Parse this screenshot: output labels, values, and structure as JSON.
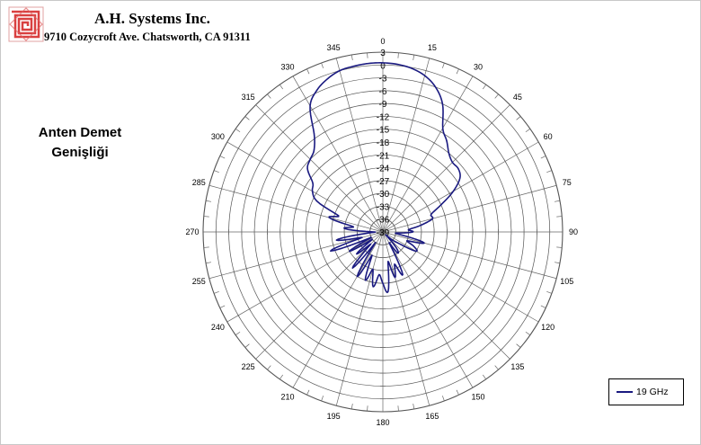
{
  "header": {
    "company_name": "A.H. Systems Inc.",
    "company_address": "9710 Cozycroft Ave. Chatsworth, CA 91311"
  },
  "side_title": {
    "line1": "Anten Demet",
    "line2": "Genişliği"
  },
  "legend": {
    "label": "19 GHz",
    "color": "#1a1a80"
  },
  "chart_data": {
    "type": "polar-line",
    "angle_unit": "degrees",
    "angle_direction": "clockwise",
    "zero_position": "top",
    "angle_tick_labels": [
      "0",
      "15",
      "30",
      "45",
      "60",
      "75",
      "90",
      "105",
      "120",
      "135",
      "150",
      "165",
      "180",
      "195",
      "210",
      "225",
      "240",
      "255",
      "270",
      "285",
      "300",
      "315",
      "330",
      "345"
    ],
    "radial_range": [
      -39,
      3
    ],
    "radial_tick_labels": [
      "3",
      "0",
      "-3",
      "-6",
      "-9",
      "-12",
      "-15",
      "-18",
      "-21",
      "-24",
      "-27",
      "-30",
      "-33",
      "-36",
      "-39"
    ],
    "grid": true,
    "legend_position": "bottom-right",
    "series": [
      {
        "name": "19 GHz",
        "color": "#1a1a80",
        "angles": [
          0,
          5,
          10,
          15,
          20,
          25,
          30,
          35,
          40,
          45,
          50,
          55,
          60,
          65,
          70,
          75,
          80,
          85,
          90,
          95,
          100,
          105,
          110,
          115,
          120,
          125,
          130,
          135,
          140,
          145,
          150,
          155,
          160,
          165,
          170,
          175,
          180,
          185,
          190,
          195,
          200,
          205,
          210,
          215,
          220,
          225,
          230,
          235,
          240,
          245,
          250,
          255,
          260,
          265,
          270,
          275,
          280,
          285,
          290,
          295,
          300,
          305,
          310,
          315,
          320,
          325,
          330,
          335,
          340,
          345,
          350,
          355
        ],
        "values": [
          0.5,
          0.3,
          -0.2,
          -1.2,
          -3,
          -6,
          -11,
          -13,
          -15,
          -16,
          -16,
          -17,
          -20,
          -24,
          -27,
          -27,
          -30,
          -33,
          -32,
          -36,
          -34,
          -29,
          -33,
          -31,
          -30,
          -34,
          -36,
          -38,
          -34,
          -33,
          -36,
          -28,
          -31,
          -28,
          -32,
          -25,
          -27,
          -29,
          -26,
          -30,
          -27,
          -33,
          -27,
          -36,
          -28,
          -35,
          -31,
          -36,
          -30,
          -36,
          -26,
          -34,
          -28,
          -35,
          -37,
          -30,
          -32,
          -26,
          -28,
          -22,
          -20,
          -19,
          -16,
          -15,
          -14,
          -11,
          -5,
          -2.5,
          -1,
          0,
          0.3,
          0.5
        ]
      }
    ]
  }
}
